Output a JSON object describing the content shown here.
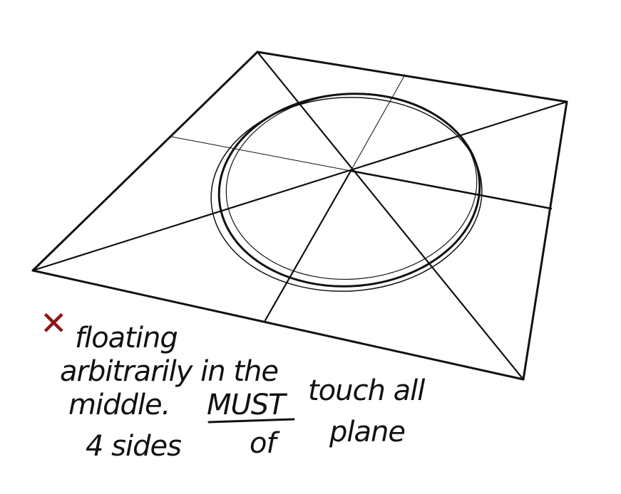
{
  "annotation": {
    "mark": "✕",
    "mark_color": "#8b1a1a",
    "line1": "floating",
    "line2": "arbitrarily in the",
    "line3_a": "middle.",
    "line3_b": "MUST",
    "line3_c": "touch all",
    "line4_a": "4 sides",
    "line4_b": "of",
    "line4_c": "plane"
  },
  "colors": {
    "ink": "#111111",
    "background": "#ffffff"
  }
}
